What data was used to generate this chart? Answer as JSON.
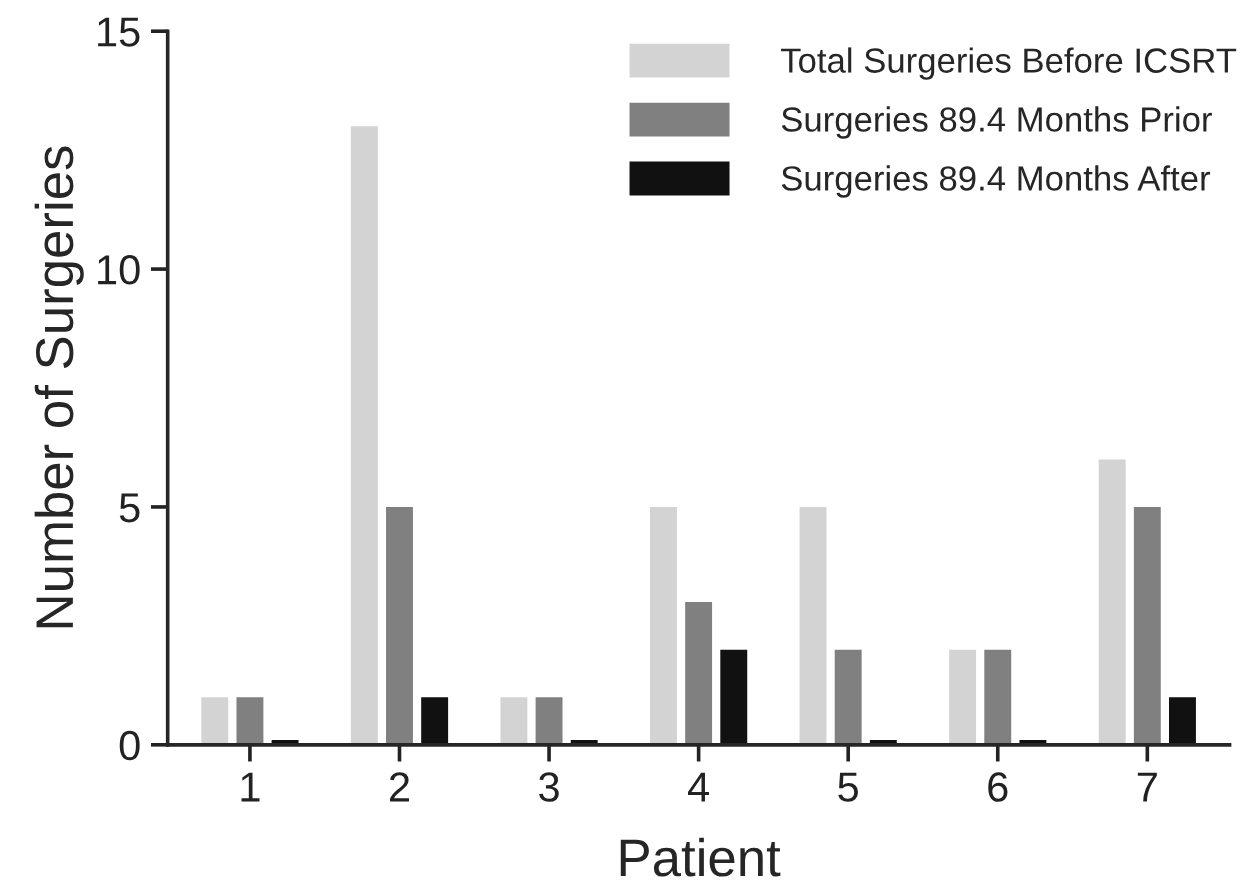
{
  "chart_data": {
    "type": "bar",
    "xlabel": "Patient",
    "ylabel": "Number of Surgeries",
    "categories": [
      "1",
      "2",
      "3",
      "4",
      "5",
      "6",
      "7"
    ],
    "series": [
      {
        "name": "Total Surgeries Before ICSRT",
        "color": "#d3d3d3",
        "values": [
          1,
          13,
          1,
          5,
          5,
          2,
          6
        ]
      },
      {
        "name": "Surgeries 89.4 Months Prior",
        "color": "#808080",
        "values": [
          1,
          5,
          1,
          3,
          2,
          2,
          5
        ]
      },
      {
        "name": "Surgeries 89.4 Months After",
        "color": "#111111",
        "values": [
          0.1,
          1,
          0.1,
          2,
          0.1,
          0.1,
          1
        ]
      }
    ],
    "ylim": [
      0,
      15
    ],
    "yticks": [
      0,
      5,
      10,
      15
    ],
    "grid": false,
    "legend": "top right"
  }
}
